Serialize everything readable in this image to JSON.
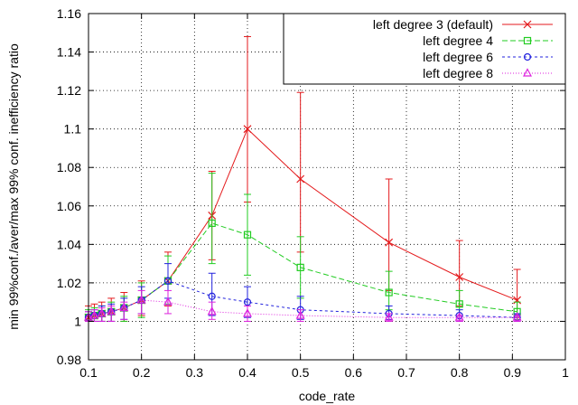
{
  "chart_data": {
    "type": "line",
    "title": "",
    "xlabel": "code_rate",
    "ylabel": "min 99%conf./aver/max 99% conf. inefficiency ratio",
    "xlim": [
      0.1,
      1.0
    ],
    "ylim": [
      0.98,
      1.16
    ],
    "xticks": [
      0.1,
      0.2,
      0.3,
      0.4,
      0.5,
      0.6,
      0.7,
      0.8,
      0.9,
      1.0
    ],
    "xtick_labels": [
      "0.1",
      "0.2",
      "0.3",
      "0.4",
      "0.5",
      "0.6",
      "0.7",
      "0.8",
      "0.9",
      "1"
    ],
    "yticks": [
      0.98,
      1.0,
      1.02,
      1.04,
      1.06,
      1.08,
      1.1,
      1.12,
      1.14,
      1.16
    ],
    "ytick_labels": [
      "0.98",
      "1",
      "1.02",
      "1.04",
      "1.06",
      "1.08",
      "1.1",
      "1.12",
      "1.14",
      "1.16"
    ],
    "grid": true,
    "legend_position": "top-right",
    "series": [
      {
        "name": "left degree 3 (default)",
        "color": "#e41a1c",
        "marker": "x",
        "dash": "",
        "x": [
          0.1,
          0.111,
          0.125,
          0.143,
          0.167,
          0.2,
          0.25,
          0.333,
          0.4,
          0.5,
          0.667,
          0.8,
          0.909
        ],
        "y": [
          1.002,
          1.003,
          1.004,
          1.005,
          1.007,
          1.011,
          1.021,
          1.055,
          1.1,
          1.074,
          1.041,
          1.023,
          1.011
        ],
        "min": [
          1.0,
          1.0,
          1.0,
          1.0,
          1.0,
          1.003,
          1.008,
          1.032,
          1.062,
          1.036,
          1.016,
          1.008,
          1.002
        ],
        "max": [
          1.008,
          1.009,
          1.01,
          1.012,
          1.015,
          1.021,
          1.036,
          1.078,
          1.148,
          1.119,
          1.074,
          1.042,
          1.027
        ]
      },
      {
        "name": "left degree 4",
        "color": "#22cc22",
        "marker": "square-open",
        "dash": "6 3",
        "x": [
          0.1,
          0.111,
          0.125,
          0.143,
          0.167,
          0.2,
          0.25,
          0.333,
          0.4,
          0.5,
          0.667,
          0.8,
          0.909
        ],
        "y": [
          1.002,
          1.003,
          1.004,
          1.005,
          1.007,
          1.011,
          1.021,
          1.051,
          1.045,
          1.028,
          1.015,
          1.009,
          1.005
        ],
        "min": [
          1.0,
          1.0,
          1.0,
          1.0,
          1.0,
          1.002,
          1.009,
          1.03,
          1.024,
          1.012,
          1.006,
          1.003,
          1.001
        ],
        "max": [
          1.006,
          1.007,
          1.008,
          1.01,
          1.013,
          1.02,
          1.034,
          1.077,
          1.066,
          1.044,
          1.026,
          1.016,
          1.01
        ]
      },
      {
        "name": "left degree 6",
        "color": "#2222dd",
        "marker": "circle-open",
        "dash": "3 3",
        "x": [
          0.1,
          0.111,
          0.125,
          0.143,
          0.167,
          0.2,
          0.25,
          0.333,
          0.4,
          0.5,
          0.667,
          0.8,
          0.909
        ],
        "y": [
          1.002,
          1.003,
          1.004,
          1.005,
          1.007,
          1.011,
          1.021,
          1.013,
          1.01,
          1.006,
          1.004,
          1.003,
          1.002
        ],
        "min": [
          1.0,
          1.0,
          1.0,
          1.0,
          1.001,
          1.004,
          1.012,
          1.003,
          1.002,
          1.001,
          1.001,
          1.0,
          1.0
        ],
        "max": [
          1.005,
          1.006,
          1.008,
          1.009,
          1.012,
          1.018,
          1.03,
          1.025,
          1.018,
          1.013,
          1.008,
          1.006,
          1.004
        ]
      },
      {
        "name": "left degree 8",
        "color": "#dd22dd",
        "marker": "triangle-open",
        "dash": "1 2",
        "x": [
          0.1,
          0.111,
          0.125,
          0.143,
          0.167,
          0.2,
          0.25,
          0.333,
          0.4,
          0.5,
          0.667,
          0.8,
          0.909
        ],
        "y": [
          1.002,
          1.003,
          1.004,
          1.005,
          1.007,
          1.011,
          1.01,
          1.005,
          1.004,
          1.003,
          1.002,
          1.002,
          1.002
        ],
        "min": [
          1.0,
          1.0,
          1.0,
          1.0,
          1.001,
          1.004,
          1.004,
          1.001,
          1.0,
          1.0,
          1.0,
          1.0,
          1.0
        ],
        "max": [
          1.005,
          1.006,
          1.007,
          1.008,
          1.01,
          1.016,
          1.016,
          1.01,
          1.008,
          1.006,
          1.004,
          1.003,
          1.003
        ]
      }
    ]
  }
}
